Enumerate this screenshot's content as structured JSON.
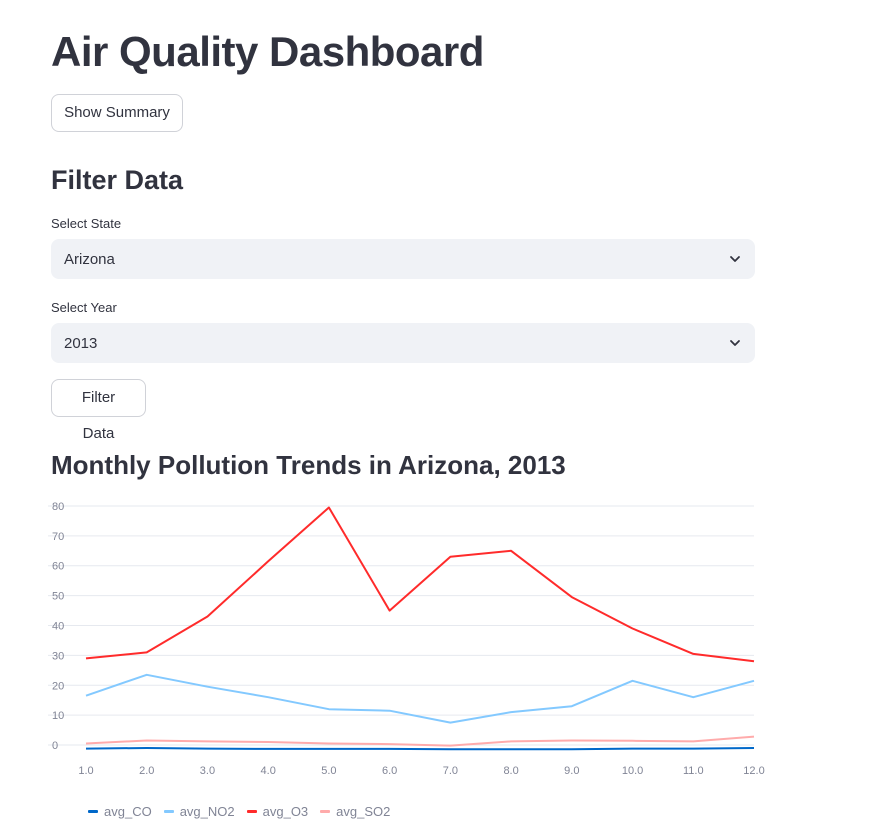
{
  "page": {
    "title": "Air Quality Dashboard",
    "summary_button": "Show Summary"
  },
  "filters": {
    "heading": "Filter Data",
    "state_label": "Select State",
    "state_value": "Arizona",
    "year_label": "Select Year",
    "year_value": "2013",
    "submit_button": "Filter Data"
  },
  "chart": {
    "heading": "Monthly Pollution Trends in Arizona, 2013"
  },
  "icons": {
    "select_arrow": "chevron-down-icon"
  },
  "chart_data": {
    "type": "line",
    "title": "Monthly Pollution Trends in Arizona, 2013",
    "xlabel": "",
    "ylabel": "",
    "x": [
      1.0,
      2.0,
      3.0,
      4.0,
      5.0,
      6.0,
      7.0,
      8.0,
      9.0,
      10.0,
      11.0,
      12.0
    ],
    "x_tick_labels": [
      "1.0",
      "2.0",
      "3.0",
      "4.0",
      "5.0",
      "6.0",
      "7.0",
      "8.0",
      "9.0",
      "10.0",
      "11.0",
      "12.0"
    ],
    "y_ticks": [
      0,
      10,
      20,
      30,
      40,
      50,
      60,
      70,
      80
    ],
    "xlim": [
      1,
      12
    ],
    "ylim": [
      -1,
      82
    ],
    "grid": "horizontal",
    "legend_position": "bottom-left",
    "series": [
      {
        "name": "avg_CO",
        "color": "#0068c9",
        "values": [
          -1.2,
          -1.0,
          -1.2,
          -1.3,
          -1.3,
          -1.3,
          -1.4,
          -1.4,
          -1.4,
          -1.2,
          -1.2,
          -1.0
        ]
      },
      {
        "name": "avg_NO2",
        "color": "#83c9ff",
        "values": [
          16.5,
          23.5,
          19.5,
          16.0,
          12.0,
          11.5,
          7.5,
          11.0,
          13.0,
          21.5,
          16.0,
          21.5
        ]
      },
      {
        "name": "avg_O3",
        "color": "#ff2b2b",
        "values": [
          29.0,
          31.0,
          43.0,
          61.5,
          79.5,
          45.0,
          63.0,
          65.0,
          49.5,
          39.0,
          30.5,
          28.0
        ]
      },
      {
        "name": "avg_SO2",
        "color": "#ffabab",
        "values": [
          0.5,
          1.5,
          1.2,
          1.0,
          0.5,
          0.3,
          -0.2,
          1.2,
          1.5,
          1.4,
          1.2,
          2.8
        ]
      }
    ]
  }
}
